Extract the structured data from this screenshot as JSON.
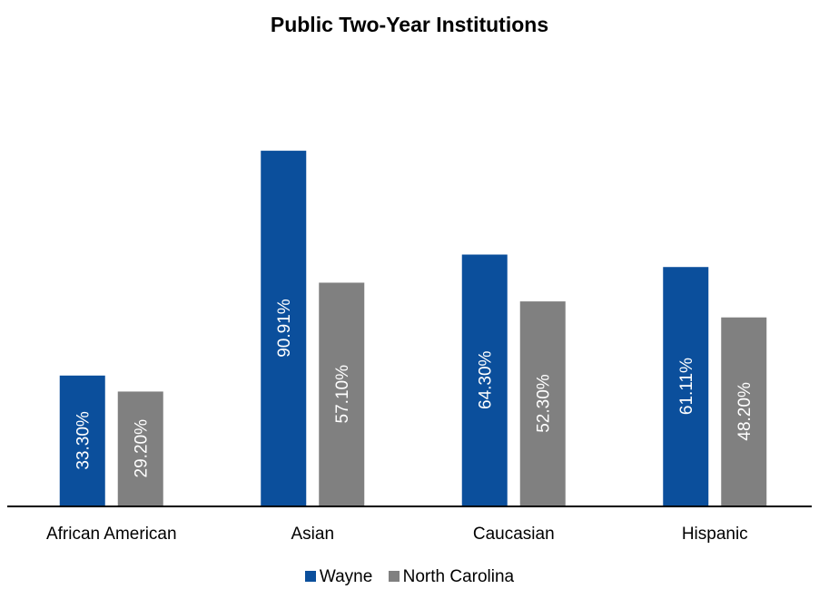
{
  "chart_data": {
    "type": "bar",
    "title": "Public Two-Year Institutions",
    "categories": [
      "African American",
      "Asian",
      "Caucasian",
      "Hispanic"
    ],
    "series": [
      {
        "name": "Wayne",
        "color": "#0b4f9c",
        "values": [
          33.3,
          90.91,
          64.3,
          61.11
        ],
        "labels": [
          "33.30%",
          "90.91%",
          "64.30%",
          "61.11%"
        ]
      },
      {
        "name": "North Carolina",
        "color": "#808080",
        "values": [
          29.2,
          57.1,
          52.3,
          48.2
        ],
        "labels": [
          "29.20%",
          "57.10%",
          "52.30%",
          "48.20%"
        ]
      }
    ],
    "ylim": [
      0,
      100
    ],
    "legend": "bottom",
    "grid": false
  }
}
